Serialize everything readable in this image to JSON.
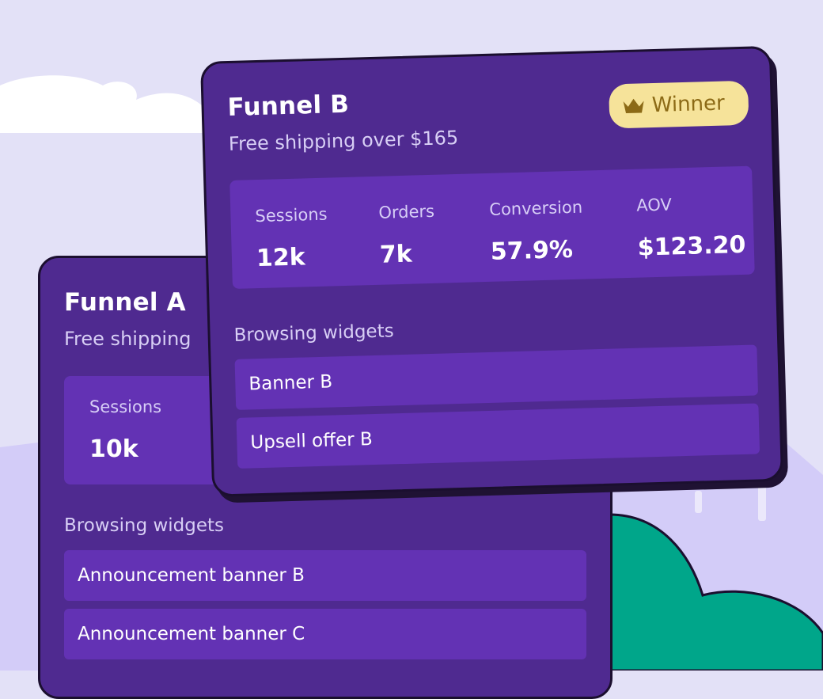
{
  "funnel_a": {
    "title": "Funnel A",
    "subtitle": "Free shipping",
    "stats": [
      {
        "label": "Sessions",
        "value": "10k"
      }
    ],
    "section_label": "Browsing widgets",
    "widgets": [
      "Announcement banner B",
      "Announcement banner C"
    ]
  },
  "funnel_b": {
    "title": "Funnel B",
    "subtitle": "Free shipping over $165",
    "badge": {
      "label": "Winner",
      "icon": "crown-icon"
    },
    "stats": [
      {
        "label": "Sessions",
        "value": "12k"
      },
      {
        "label": "Orders",
        "value": "7k"
      },
      {
        "label": "Conversion",
        "value": "57.9%"
      },
      {
        "label": "AOV",
        "value": "$123.20"
      }
    ],
    "section_label": "Browsing widgets",
    "widgets": [
      "Banner B",
      "Upsell offer B"
    ]
  },
  "colors": {
    "background": "#e3e1f7",
    "panel": "#4f2a90",
    "panel_inner": "#6332b4",
    "badge_bg": "#f6e39a",
    "badge_text": "#8c6a16",
    "shrub": "#00a68a",
    "cloud": "#ffffff"
  }
}
